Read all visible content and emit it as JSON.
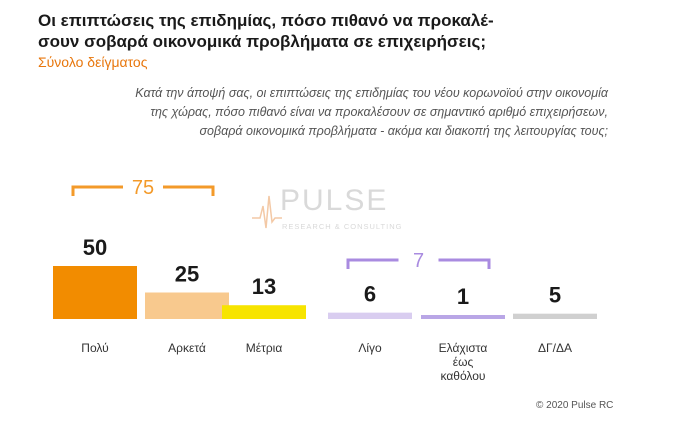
{
  "header": {
    "title_line1": "Οι επιπτώσεις της επιδημίας, πόσο πιθανό να προκαλέ-",
    "title_line2": "σουν σοβαρά οικονομικά προβλήματα σε επιχειρήσεις;",
    "subtitle": "Σύνολο δείγματος",
    "question_line1": "Κατά την άποψή σας, οι επιπτώσεις της επιδημίας του νέου κορωνοϊού στην οικονομία",
    "question_line2": "της χώρας, πόσο πιθανό είναι να προκαλέσουν σε σημαντικό αριθμό επιχειρήσεων,",
    "question_line3": "σοβαρά οικονομικά προβλήματα - ακόμα και διακοπή της λειτουργίας τους;"
  },
  "logo": {
    "word": "PULSE",
    "tag": "RESEARCH & CONSULTING"
  },
  "footer": {
    "copyright": "© 2020 Pulse RC"
  },
  "colors": {
    "orange_dark": "#f28c00",
    "orange_light": "#f8c98e",
    "yellow": "#f7e400",
    "lavender_light": "#d9cdf0",
    "lavender": "#b9a6e6",
    "grey": "#d0d0d0",
    "bracket_orange": "#f39a2a",
    "bracket_purple": "#a98be0"
  },
  "chart_data": {
    "type": "bar",
    "categories": [
      "Πολύ",
      "Αρκετά",
      "Μέτρια",
      "Λίγο",
      "Ελάχιστα έως καθόλου",
      "ΔΓ/ΔΑ"
    ],
    "category_lines": [
      [
        "Πολύ"
      ],
      [
        "Αρκετά"
      ],
      [
        "Μέτρια"
      ],
      [
        "Λίγο"
      ],
      [
        "Ελάχιστα",
        "έως",
        "καθόλου"
      ],
      [
        "ΔΓ/ΔΑ"
      ]
    ],
    "values": [
      50,
      25,
      13,
      6,
      1,
      5
    ],
    "value_labels": [
      "50",
      "25",
      "13",
      "6",
      "1",
      "5"
    ],
    "bar_colors": [
      "#f28c00",
      "#f8c98e",
      "#f7e400",
      "#d9cdf0",
      "#b9a6e6",
      "#d0d0d0"
    ],
    "groups": [
      {
        "label": "75",
        "from": 0,
        "to": 1,
        "color": "#f39a2a"
      },
      {
        "label": "7",
        "from": 3,
        "to": 4,
        "color": "#a98be0"
      }
    ]
  }
}
